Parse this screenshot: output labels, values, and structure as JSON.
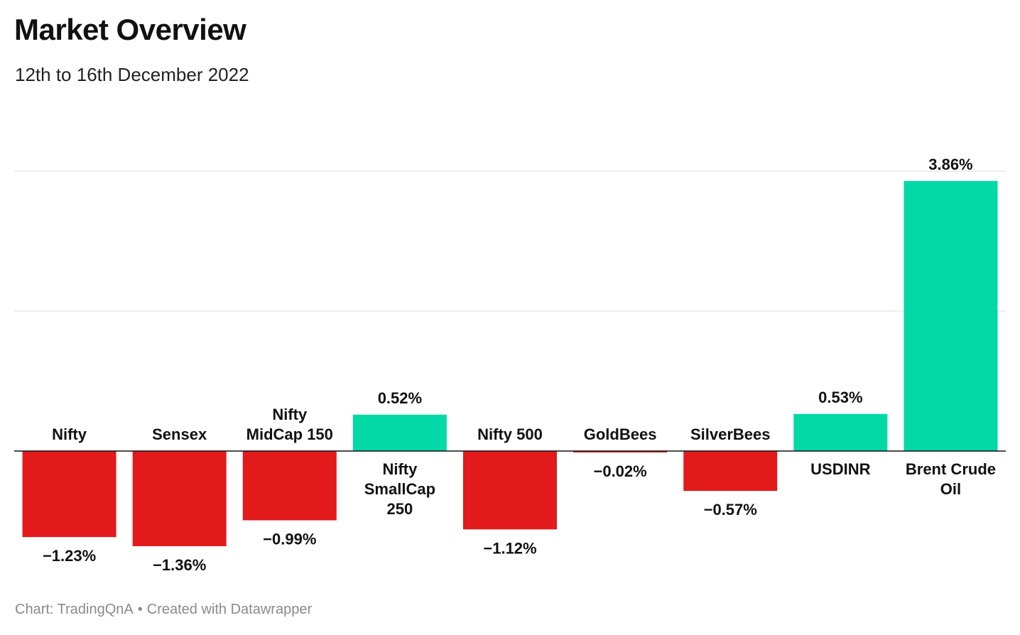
{
  "header": {
    "title": "Market Overview",
    "subtitle": "12th to 16th December 2022"
  },
  "footer": {
    "source": "Chart: TradingQnA",
    "separator": "•",
    "credit": "Created with Datawrapper"
  },
  "colors": {
    "positive": "#02d9a6",
    "negative": "#e31a1c",
    "gridline": "#e3e3e3",
    "baseline": "#111111"
  },
  "chart_data": {
    "type": "bar",
    "title": "Market Overview",
    "subtitle": "12th to 16th December 2022",
    "categories": [
      [
        "Nifty"
      ],
      [
        "Sensex"
      ],
      [
        "Nifty",
        "MidCap 150"
      ],
      [
        "Nifty",
        "SmallCap",
        "250"
      ],
      [
        "Nifty 500"
      ],
      [
        "GoldBees"
      ],
      [
        "SilverBees"
      ],
      [
        "USDINR"
      ],
      [
        "Brent Crude",
        "Oil"
      ]
    ],
    "values": [
      -1.23,
      -1.36,
      -0.99,
      0.52,
      -1.12,
      -0.02,
      -0.57,
      0.53,
      3.86
    ],
    "value_labels": [
      "−1.23%",
      "−1.36%",
      "−0.99%",
      "0.52%",
      "−1.12%",
      "−0.02%",
      "−0.57%",
      "0.53%",
      "3.86%"
    ],
    "ylim": [
      -2,
      4
    ],
    "gridlines": [
      0,
      2,
      4
    ],
    "grid": true,
    "legend": false
  }
}
